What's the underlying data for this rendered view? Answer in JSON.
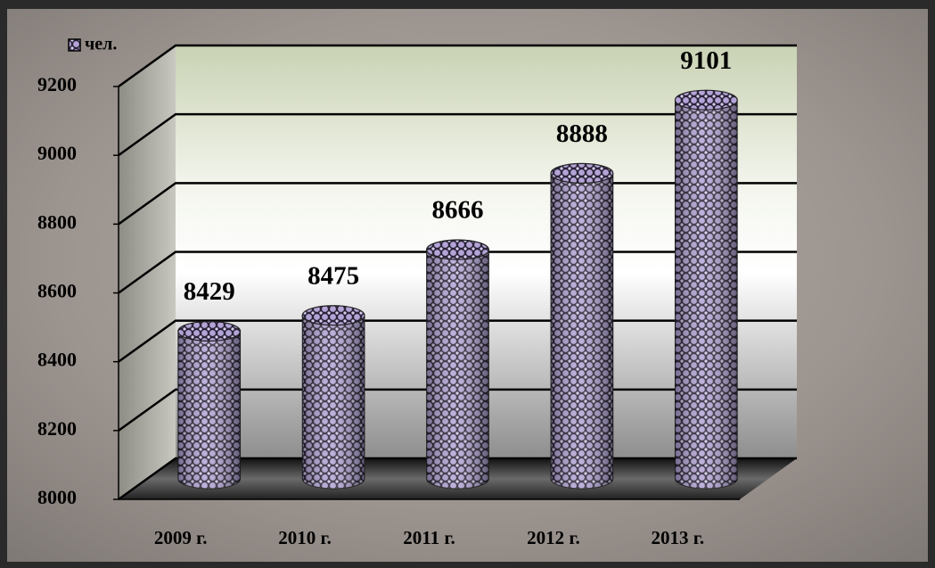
{
  "chart_data": {
    "type": "bar3d",
    "categories": [
      "2009 г.",
      "2010 г.",
      "2011 г.",
      "2012 г.",
      "2013 г."
    ],
    "series": [
      {
        "name": "чел.",
        "color": "#b3a3d6",
        "values": [
          8429,
          8475,
          8666,
          8888,
          9101
        ]
      }
    ],
    "ylim": [
      8000,
      9200
    ],
    "yticks": [
      8000,
      8200,
      8400,
      8600,
      8800,
      9000,
      9200
    ],
    "grid": true,
    "legend": "top-left"
  }
}
